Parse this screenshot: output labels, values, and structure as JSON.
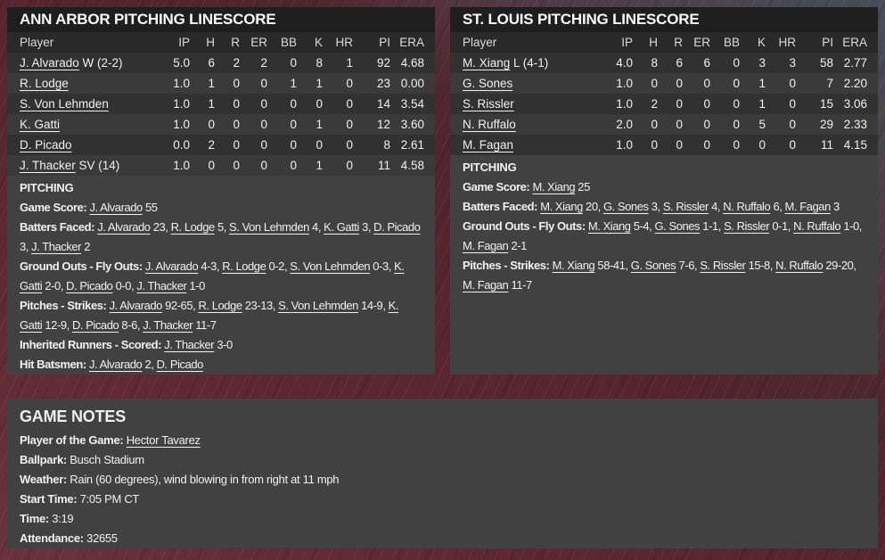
{
  "theme": {
    "background_maroon": "#5a2530",
    "background_slate": "#474d57",
    "panel_gray": "#414141",
    "titlebar_black": "#1e1e1e",
    "row_dark": "#313131",
    "row_light": "#3a3a3a",
    "text_white": "#f0f0f0"
  },
  "panels": [
    {
      "id": "ann-arbor",
      "title": "ANN ARBOR PITCHING LINESCORE",
      "columns": [
        "Player",
        "IP",
        "H",
        "R",
        "ER",
        "BB",
        "K",
        "HR",
        "PI",
        "ERA"
      ],
      "rows": [
        {
          "player": "J. Alvarado",
          "note": "W (2-2)",
          "stats": [
            "5.0",
            "6",
            "2",
            "2",
            "0",
            "8",
            "1",
            "92",
            "4.68"
          ]
        },
        {
          "player": "R. Lodge",
          "note": "",
          "stats": [
            "1.0",
            "1",
            "0",
            "0",
            "1",
            "1",
            "0",
            "23",
            "0.00"
          ]
        },
        {
          "player": "S. Von Lehmden",
          "note": "",
          "stats": [
            "1.0",
            "1",
            "0",
            "0",
            "0",
            "0",
            "0",
            "14",
            "3.54"
          ]
        },
        {
          "player": "K. Gatti",
          "note": "",
          "stats": [
            "1.0",
            "0",
            "0",
            "0",
            "0",
            "1",
            "0",
            "12",
            "3.60"
          ]
        },
        {
          "player": "D. Picado",
          "note": "",
          "stats": [
            "0.0",
            "2",
            "0",
            "0",
            "0",
            "0",
            "0",
            "8",
            "2.61"
          ]
        },
        {
          "player": "J. Thacker",
          "note": "SV (14)",
          "stats": [
            "1.0",
            "0",
            "0",
            "0",
            "0",
            "1",
            "0",
            "11",
            "4.58"
          ]
        }
      ],
      "section_heading": "PITCHING",
      "lines": [
        {
          "label": "Game Score:",
          "segments": [
            [
              "link",
              "J. Alvarado"
            ],
            [
              "text",
              " 55"
            ]
          ]
        },
        {
          "label": "Batters Faced:",
          "segments": [
            [
              "link",
              "J. Alvarado"
            ],
            [
              "text",
              " 23, "
            ],
            [
              "link",
              "R. Lodge"
            ],
            [
              "text",
              " 5, "
            ],
            [
              "link",
              "S. Von Lehmden"
            ],
            [
              "text",
              " 4, "
            ],
            [
              "link",
              "K. Gatti"
            ],
            [
              "text",
              " 3, "
            ],
            [
              "link",
              "D. Picado"
            ],
            [
              "text",
              " 3, "
            ],
            [
              "link",
              "J. Thacker"
            ],
            [
              "text",
              " 2"
            ]
          ]
        },
        {
          "label": "Ground Outs - Fly Outs:",
          "segments": [
            [
              "link",
              "J. Alvarado"
            ],
            [
              "text",
              " 4-3, "
            ],
            [
              "link",
              "R. Lodge"
            ],
            [
              "text",
              " 0-2, "
            ],
            [
              "link",
              "S. Von Lehmden"
            ],
            [
              "text",
              " 0-3, "
            ],
            [
              "link",
              "K. Gatti"
            ],
            [
              "text",
              " 2-0, "
            ],
            [
              "link",
              "D. Picado"
            ],
            [
              "text",
              " 0-0, "
            ],
            [
              "link",
              "J. Thacker"
            ],
            [
              "text",
              " 1-0"
            ]
          ]
        },
        {
          "label": "Pitches - Strikes:",
          "segments": [
            [
              "link",
              "J. Alvarado"
            ],
            [
              "text",
              " 92-65, "
            ],
            [
              "link",
              "R. Lodge"
            ],
            [
              "text",
              " 23-13, "
            ],
            [
              "link",
              "S. Von Lehmden"
            ],
            [
              "text",
              " 14-9, "
            ],
            [
              "link",
              "K. Gatti"
            ],
            [
              "text",
              " 12-9, "
            ],
            [
              "link",
              "D. Picado"
            ],
            [
              "text",
              " 8-6, "
            ],
            [
              "link",
              "J. Thacker"
            ],
            [
              "text",
              " 11-7"
            ]
          ]
        },
        {
          "label": "Inherited Runners - Scored:",
          "segments": [
            [
              "link",
              "J. Thacker"
            ],
            [
              "text",
              " 3-0"
            ]
          ]
        },
        {
          "label": "Hit Batsmen:",
          "segments": [
            [
              "link",
              "J. Alvarado"
            ],
            [
              "text",
              " 2, "
            ],
            [
              "link",
              "D. Picado"
            ]
          ]
        }
      ]
    },
    {
      "id": "st-louis",
      "title": "ST. LOUIS PITCHING LINESCORE",
      "columns": [
        "Player",
        "IP",
        "H",
        "R",
        "ER",
        "BB",
        "K",
        "HR",
        "PI",
        "ERA"
      ],
      "rows": [
        {
          "player": "M. Xiang",
          "note": "L (4-1)",
          "stats": [
            "4.0",
            "8",
            "6",
            "6",
            "0",
            "3",
            "3",
            "58",
            "2.77"
          ]
        },
        {
          "player": "G. Sones",
          "note": "",
          "stats": [
            "1.0",
            "0",
            "0",
            "0",
            "0",
            "1",
            "0",
            "7",
            "2.20"
          ]
        },
        {
          "player": "S. Rissler",
          "note": "",
          "stats": [
            "1.0",
            "2",
            "0",
            "0",
            "0",
            "1",
            "0",
            "15",
            "3.06"
          ]
        },
        {
          "player": "N. Ruffalo",
          "note": "",
          "stats": [
            "2.0",
            "0",
            "0",
            "0",
            "0",
            "5",
            "0",
            "29",
            "2.33"
          ]
        },
        {
          "player": "M. Fagan",
          "note": "",
          "stats": [
            "1.0",
            "0",
            "0",
            "0",
            "0",
            "0",
            "0",
            "11",
            "4.15"
          ]
        }
      ],
      "section_heading": "PITCHING",
      "lines": [
        {
          "label": "Game Score:",
          "segments": [
            [
              "link",
              "M. Xiang"
            ],
            [
              "text",
              " 25"
            ]
          ]
        },
        {
          "label": "Batters Faced:",
          "segments": [
            [
              "link",
              "M. Xiang"
            ],
            [
              "text",
              " 20, "
            ],
            [
              "link",
              "G. Sones"
            ],
            [
              "text",
              " 3, "
            ],
            [
              "link",
              "S. Rissler"
            ],
            [
              "text",
              " 4, "
            ],
            [
              "link",
              "N. Ruffalo"
            ],
            [
              "text",
              " 6, "
            ],
            [
              "link",
              "M. Fagan"
            ],
            [
              "text",
              " 3"
            ]
          ]
        },
        {
          "label": "Ground Outs - Fly Outs:",
          "segments": [
            [
              "link",
              "M. Xiang"
            ],
            [
              "text",
              " 5-4, "
            ],
            [
              "link",
              "G. Sones"
            ],
            [
              "text",
              " 1-1, "
            ],
            [
              "link",
              "S. Rissler"
            ],
            [
              "text",
              " 0-1, "
            ],
            [
              "link",
              "N. Ruffalo"
            ],
            [
              "text",
              " 1-0, "
            ],
            [
              "link",
              "M. Fagan"
            ],
            [
              "text",
              " 2-1"
            ]
          ]
        },
        {
          "label": "Pitches - Strikes:",
          "segments": [
            [
              "link",
              "M. Xiang"
            ],
            [
              "text",
              " 58-41, "
            ],
            [
              "link",
              "G. Sones"
            ],
            [
              "text",
              " 7-6, "
            ],
            [
              "link",
              "S. Rissler"
            ],
            [
              "text",
              " 15-8, "
            ],
            [
              "link",
              "N. Ruffalo"
            ],
            [
              "text",
              " 29-20, "
            ],
            [
              "link",
              "M. Fagan"
            ],
            [
              "text",
              " 11-7"
            ]
          ]
        }
      ]
    }
  ],
  "game_notes": {
    "title": "GAME NOTES",
    "lines": [
      {
        "label": "Player of the Game:",
        "segments": [
          [
            "link",
            "Hector Tavarez"
          ]
        ]
      },
      {
        "label": "Ballpark:",
        "segments": [
          [
            "text",
            "Busch Stadium"
          ]
        ]
      },
      {
        "label": "Weather:",
        "segments": [
          [
            "text",
            "Rain (60 degrees), wind blowing in from right at 11 mph"
          ]
        ]
      },
      {
        "label": "Start Time:",
        "segments": [
          [
            "text",
            "7:05 PM CT"
          ]
        ]
      },
      {
        "label": "Time:",
        "segments": [
          [
            "text",
            "3:19"
          ]
        ]
      },
      {
        "label": "Attendance:",
        "segments": [
          [
            "text",
            "32655"
          ]
        ]
      }
    ]
  }
}
